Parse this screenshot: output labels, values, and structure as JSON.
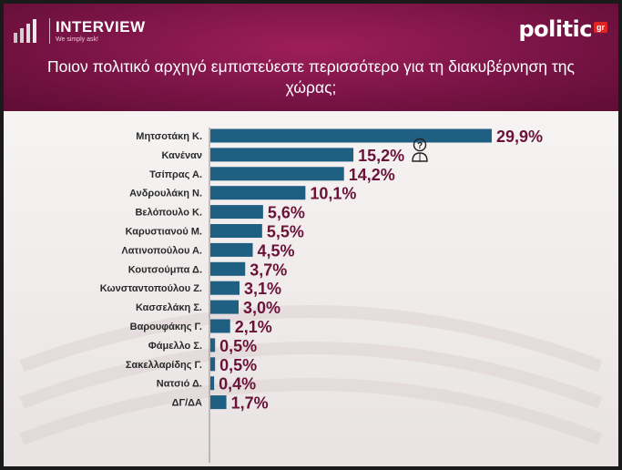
{
  "header": {
    "brand_left": "INTERVIEW",
    "brand_tagline": "We simply ask!",
    "brand_right": "politic",
    "brand_right_suffix": "gr",
    "question": "Ποιον πολιτικό αρχηγό εμπιστεύεστε περισσότερο για τη διακυβέρνηση της χώρας;",
    "colors": {
      "background": "#7a1446",
      "accent": "#e02424"
    }
  },
  "chart_data": {
    "type": "bar",
    "orientation": "horizontal",
    "categories": [
      "Μητσοτάκη Κ.",
      "Κανέναν",
      "Τσίπρας Α.",
      "Ανδρουλάκη Ν.",
      "Βελόπουλο Κ.",
      "Καρυστιανού Μ.",
      "Λατινοπούλου Α.",
      "Κουτσούμπα Δ.",
      "Κωνσταντοπούλου Ζ.",
      "Κασσελάκη Σ.",
      "Βαρουφάκης Γ.",
      "Φάμελλο Σ.",
      "Σακελλαρίδης Γ.",
      "Νατσιό Δ.",
      "ΔΓ/ΔΑ"
    ],
    "values": [
      29.9,
      15.2,
      14.2,
      10.1,
      5.6,
      5.5,
      4.5,
      3.7,
      3.1,
      3.0,
      2.1,
      0.5,
      0.5,
      0.4,
      1.7
    ],
    "value_labels": [
      "29,9%",
      "15,2%",
      "14,2%",
      "10,1%",
      "5,6%",
      "5,5%",
      "4,5%",
      "3,7%",
      "3,1%",
      "3,0%",
      "2,1%",
      "0,5%",
      "0,5%",
      "0,4%",
      "1,7%"
    ],
    "xlim": [
      0,
      30
    ],
    "bar_color": "#1e5f82",
    "label_color": "#6b1239",
    "icon": "question-person-icon",
    "grid": false,
    "legend": "none"
  }
}
